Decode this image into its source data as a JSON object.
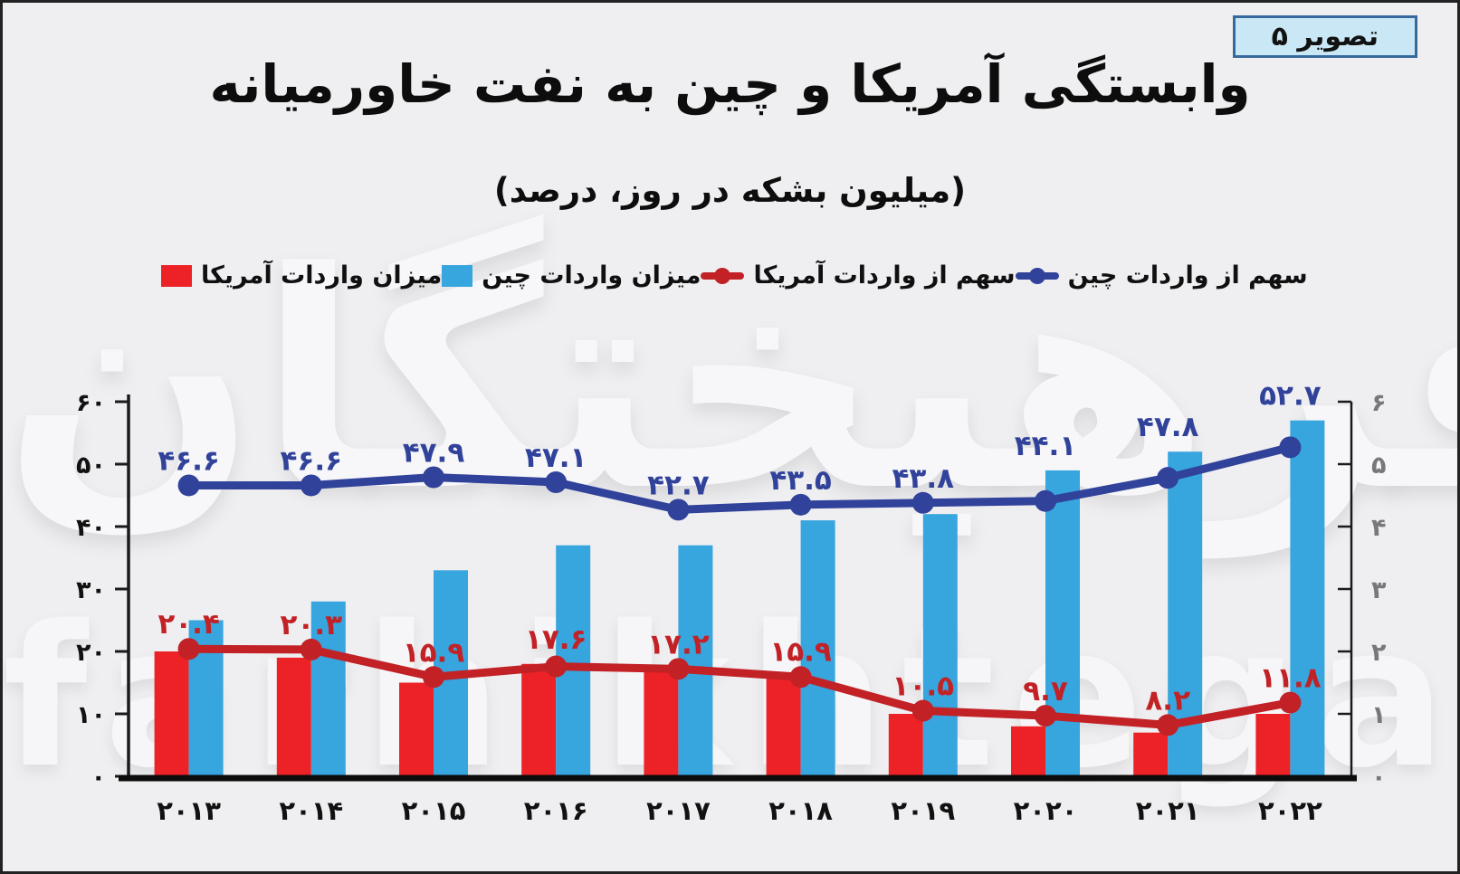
{
  "badge": {
    "label": "تصویر ۵"
  },
  "watermark": {
    "fa": "فرهیختگان",
    "en": "farhikhtegan"
  },
  "chart_data": {
    "type": "combo-bar-line",
    "title": "وابستگی آمریکا و چین به نفت خاورمیانه",
    "subtitle": "(میلیون بشکه در روز، درصد)",
    "legend_position": "top",
    "grid": false,
    "categories": [
      2013,
      2014,
      2015,
      2016,
      2017,
      2018,
      2019,
      2020,
      2021,
      2022
    ],
    "categories_display": [
      "۲۰۱۳",
      "۲۰۱۴",
      "۲۰۱۵",
      "۲۰۱۶",
      "۲۰۱۷",
      "۲۰۱۸",
      "۲۰۱۹",
      "۲۰۲۰",
      "۲۰۲۱",
      "۲۰۲۲"
    ],
    "left_axis": {
      "range": [
        0,
        60
      ],
      "ticks": [
        0,
        10,
        20,
        30,
        40,
        50,
        60
      ],
      "ticks_display": [
        "۰",
        "۱۰",
        "۲۰",
        "۳۰",
        "۴۰",
        "۵۰",
        "۶۰"
      ]
    },
    "right_axis": {
      "range": [
        0,
        6
      ],
      "ticks": [
        0,
        1,
        2,
        3,
        4,
        5,
        6
      ],
      "ticks_display": [
        "۰",
        "۱",
        "۲",
        "۳",
        "۴",
        "۵",
        "۶"
      ]
    },
    "series": [
      {
        "name": "میزان واردات آمریکا",
        "type": "bar",
        "axis": "right",
        "color": "#ec2227",
        "values_estimated": true,
        "values": [
          2.0,
          1.9,
          1.5,
          1.8,
          1.7,
          1.6,
          1.0,
          0.8,
          0.7,
          1.0
        ]
      },
      {
        "name": "میزان واردات چین",
        "type": "bar",
        "axis": "right",
        "color": "#37a5de",
        "values_estimated": true,
        "values": [
          2.5,
          2.8,
          3.3,
          3.7,
          3.7,
          4.1,
          4.2,
          4.9,
          5.2,
          5.7
        ]
      },
      {
        "name": "سهم از واردات آمریکا",
        "type": "line",
        "axis": "left",
        "color": "#c22126",
        "values": [
          20.4,
          20.3,
          15.9,
          17.6,
          17.2,
          15.9,
          10.5,
          9.7,
          8.2,
          11.8
        ],
        "labels_display": [
          "۲۰.۴",
          "۲۰.۳",
          "۱۵.۹",
          "۱۷.۶",
          "۱۷.۲",
          "۱۵.۹",
          "۱۰.۵",
          "۹.۷",
          "۸.۲",
          "۱۱.۸"
        ]
      },
      {
        "name": "سهم از واردات چین",
        "type": "line",
        "axis": "left",
        "color": "#31429a",
        "values": [
          46.6,
          46.6,
          47.9,
          47.1,
          42.7,
          43.5,
          43.8,
          44.1,
          47.8,
          52.7
        ],
        "labels_display": [
          "۴۶.۶",
          "۴۶.۶",
          "۴۷.۹",
          "۴۷.۱",
          "۴۲.۷",
          "۴۳.۵",
          "۴۳.۸",
          "۴۴.۱",
          "۴۷.۸",
          "۵۲.۷"
        ]
      }
    ]
  }
}
